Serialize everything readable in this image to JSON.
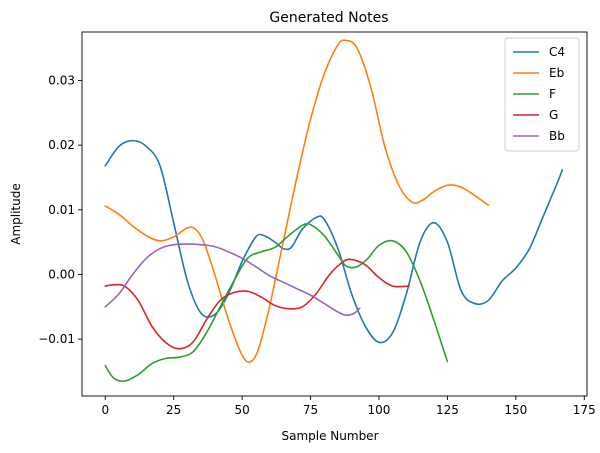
{
  "chart_data": {
    "type": "line",
    "title": "Generated Notes",
    "xlabel": "Sample Number",
    "ylabel": "Amplitude",
    "xlim": [
      -8.5,
      176
    ],
    "ylim": [
      -0.0188,
      0.0375
    ],
    "xticks": [
      0,
      25,
      50,
      75,
      100,
      125,
      150,
      175
    ],
    "xtick_labels": [
      "0",
      "25",
      "50",
      "75",
      "100",
      "125",
      "150",
      "175"
    ],
    "yticks": [
      -0.01,
      0.0,
      0.01,
      0.02,
      0.03
    ],
    "ytick_labels": [
      "−0.01",
      "0.00",
      "0.01",
      "0.02",
      "0.03"
    ],
    "grid": false,
    "legend_position": "top-right",
    "series": [
      {
        "name": "C4",
        "color": "#1f77b4",
        "points": [
          [
            0,
            0.0168
          ],
          [
            5,
            0.0198
          ],
          [
            10,
            0.0207
          ],
          [
            15,
            0.0198
          ],
          [
            20,
            0.0168
          ],
          [
            25,
            0.008
          ],
          [
            30,
            -0.001
          ],
          [
            35,
            -0.006
          ],
          [
            40,
            -0.0062
          ],
          [
            45,
            -0.003
          ],
          [
            50,
            0.002
          ],
          [
            55,
            0.0058
          ],
          [
            58,
            0.006
          ],
          [
            62,
            0.005
          ],
          [
            65,
            0.004
          ],
          [
            68,
            0.0042
          ],
          [
            72,
            0.007
          ],
          [
            77,
            0.0088
          ],
          [
            80,
            0.0085
          ],
          [
            85,
            0.004
          ],
          [
            90,
            -0.003
          ],
          [
            95,
            -0.008
          ],
          [
            100,
            -0.0105
          ],
          [
            105,
            -0.009
          ],
          [
            110,
            -0.003
          ],
          [
            115,
            0.005
          ],
          [
            120,
            0.008
          ],
          [
            125,
            0.005
          ],
          [
            130,
            -0.0025
          ],
          [
            135,
            -0.0045
          ],
          [
            140,
            -0.004
          ],
          [
            145,
            -0.001
          ],
          [
            150,
            0.001
          ],
          [
            155,
            0.004
          ],
          [
            160,
            0.009
          ],
          [
            165,
            0.014
          ],
          [
            167,
            0.0162
          ]
        ]
      },
      {
        "name": "Eb",
        "color": "#ff7f0e",
        "points": [
          [
            0,
            0.0106
          ],
          [
            5,
            0.0093
          ],
          [
            10,
            0.0075
          ],
          [
            15,
            0.006
          ],
          [
            20,
            0.0052
          ],
          [
            25,
            0.0058
          ],
          [
            30,
            0.0072
          ],
          [
            33,
            0.007
          ],
          [
            36,
            0.005
          ],
          [
            40,
            0.0
          ],
          [
            45,
            -0.007
          ],
          [
            50,
            -0.0125
          ],
          [
            53,
            -0.0135
          ],
          [
            56,
            -0.0115
          ],
          [
            60,
            -0.005
          ],
          [
            65,
            0.005
          ],
          [
            70,
            0.015
          ],
          [
            75,
            0.024
          ],
          [
            80,
            0.031
          ],
          [
            85,
            0.0355
          ],
          [
            88,
            0.0362
          ],
          [
            92,
            0.035
          ],
          [
            97,
            0.029
          ],
          [
            102,
            0.02
          ],
          [
            107,
            0.014
          ],
          [
            112,
            0.0112
          ],
          [
            116,
            0.0115
          ],
          [
            120,
            0.0128
          ],
          [
            125,
            0.0138
          ],
          [
            130,
            0.0135
          ],
          [
            135,
            0.0122
          ],
          [
            140,
            0.0107
          ]
        ]
      },
      {
        "name": "F",
        "color": "#2ca02c",
        "points": [
          [
            0,
            -0.0141
          ],
          [
            3,
            -0.016
          ],
          [
            7,
            -0.0165
          ],
          [
            12,
            -0.0155
          ],
          [
            17,
            -0.0138
          ],
          [
            22,
            -0.013
          ],
          [
            27,
            -0.0128
          ],
          [
            32,
            -0.012
          ],
          [
            37,
            -0.009
          ],
          [
            42,
            -0.005
          ],
          [
            47,
            -0.001
          ],
          [
            52,
            0.0025
          ],
          [
            57,
            0.0035
          ],
          [
            62,
            0.0042
          ],
          [
            67,
            0.006
          ],
          [
            72,
            0.0076
          ],
          [
            75,
            0.0077
          ],
          [
            80,
            0.006
          ],
          [
            85,
            0.003
          ],
          [
            88,
            0.0013
          ],
          [
            92,
            0.0012
          ],
          [
            96,
            0.0025
          ],
          [
            100,
            0.0045
          ],
          [
            105,
            0.0052
          ],
          [
            110,
            0.0035
          ],
          [
            115,
            -0.001
          ],
          [
            120,
            -0.007
          ],
          [
            125,
            -0.0135
          ]
        ]
      },
      {
        "name": "G",
        "color": "#d62728",
        "points": [
          [
            0,
            -0.0018
          ],
          [
            3,
            -0.0016
          ],
          [
            7,
            -0.0018
          ],
          [
            12,
            -0.004
          ],
          [
            17,
            -0.008
          ],
          [
            22,
            -0.0105
          ],
          [
            27,
            -0.0115
          ],
          [
            32,
            -0.0105
          ],
          [
            37,
            -0.007
          ],
          [
            42,
            -0.004
          ],
          [
            47,
            -0.0028
          ],
          [
            52,
            -0.0026
          ],
          [
            57,
            -0.0035
          ],
          [
            62,
            -0.0048
          ],
          [
            67,
            -0.0053
          ],
          [
            72,
            -0.005
          ],
          [
            77,
            -0.003
          ],
          [
            82,
            0.0
          ],
          [
            87,
            0.002
          ],
          [
            90,
            0.0023
          ],
          [
            95,
            0.0015
          ],
          [
            100,
            -0.0005
          ],
          [
            105,
            -0.0018
          ],
          [
            111,
            -0.0018
          ]
        ]
      },
      {
        "name": "Bb",
        "color": "#9467bd",
        "points": [
          [
            0,
            -0.005
          ],
          [
            5,
            -0.003
          ],
          [
            10,
            0.0
          ],
          [
            15,
            0.0025
          ],
          [
            20,
            0.004
          ],
          [
            25,
            0.0046
          ],
          [
            30,
            0.0047
          ],
          [
            35,
            0.0046
          ],
          [
            40,
            0.0043
          ],
          [
            45,
            0.0035
          ],
          [
            50,
            0.0025
          ],
          [
            55,
            0.0012
          ],
          [
            60,
            -0.0002
          ],
          [
            65,
            -0.0012
          ],
          [
            70,
            -0.0022
          ],
          [
            75,
            -0.0032
          ],
          [
            80,
            -0.0045
          ],
          [
            85,
            -0.0058
          ],
          [
            88,
            -0.0063
          ],
          [
            91,
            -0.006
          ],
          [
            93,
            -0.0052
          ]
        ]
      }
    ]
  }
}
